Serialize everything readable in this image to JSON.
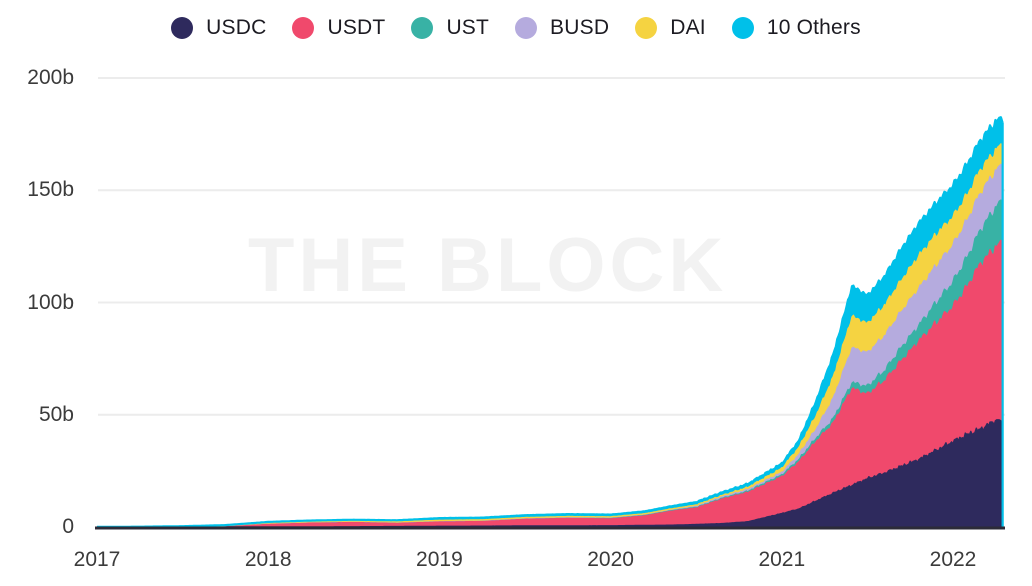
{
  "watermark": "THE BLOCK",
  "legend": {
    "items": [
      {
        "id": "usdc",
        "label": "USDC",
        "color": "#2e2a5d"
      },
      {
        "id": "usdt",
        "label": "USDT",
        "color": "#f0496c"
      },
      {
        "id": "ust",
        "label": "UST",
        "color": "#38b2a5"
      },
      {
        "id": "busd",
        "label": "BUSD",
        "color": "#b5abde"
      },
      {
        "id": "dai",
        "label": "DAI",
        "color": "#f5d341"
      },
      {
        "id": "others",
        "label": "10 Others",
        "color": "#00c0e9"
      }
    ]
  },
  "axes": {
    "y_ticks": [
      {
        "value": 200,
        "label": "200b"
      },
      {
        "value": 150,
        "label": "150b"
      },
      {
        "value": 100,
        "label": "100b"
      },
      {
        "value": 50,
        "label": "50b"
      },
      {
        "value": 0,
        "label": "0"
      }
    ],
    "x_ticks": [
      {
        "value": 2017,
        "label": "2017"
      },
      {
        "value": 2018,
        "label": "2018"
      },
      {
        "value": 2019,
        "label": "2019"
      },
      {
        "value": 2020,
        "label": "2020"
      },
      {
        "value": 2021,
        "label": "2021"
      },
      {
        "value": 2022,
        "label": "2022"
      }
    ]
  },
  "chart_data": {
    "type": "area",
    "stacked": true,
    "grid": "horizontal",
    "legend_position": "top",
    "x_unit": "year",
    "xlim": [
      2017,
      2022.29
    ],
    "ylim": [
      0,
      200
    ],
    "y_unit": "billions",
    "x": [
      2017.0,
      2017.25,
      2017.5,
      2017.75,
      2018.0,
      2018.25,
      2018.5,
      2018.75,
      2019.0,
      2019.25,
      2019.5,
      2019.75,
      2020.0,
      2020.2,
      2020.35,
      2020.5,
      2020.65,
      2020.8,
      2021.0,
      2021.1,
      2021.2,
      2021.3,
      2021.41,
      2021.5,
      2021.6,
      2021.7,
      2021.8,
      2021.9,
      2022.0,
      2022.08,
      2022.16,
      2022.24,
      2022.27,
      2022.29
    ],
    "series": [
      {
        "name": "USDC",
        "color": "#2e2a5d",
        "values": [
          0,
          0,
          0,
          0,
          0.01,
          0.03,
          0.1,
          0.18,
          0.3,
          0.35,
          0.45,
          0.5,
          0.52,
          0.7,
          0.8,
          1.1,
          1.5,
          2.3,
          6.0,
          8.0,
          11.5,
          15.0,
          18.5,
          21.5,
          24.0,
          27.0,
          30.0,
          34.0,
          38.0,
          41.0,
          43.5,
          47.0,
          48.0,
          44.0
        ]
      },
      {
        "name": "USDT",
        "color": "#f0496c",
        "values": [
          0.02,
          0.1,
          0.3,
          0.7,
          1.75,
          2.3,
          2.5,
          2.05,
          2.55,
          2.7,
          3.6,
          3.95,
          3.7,
          4.85,
          6.8,
          8.0,
          11.5,
          13.6,
          16.5,
          21.0,
          26.5,
          31.0,
          43.0,
          37.5,
          41.0,
          47.0,
          52.5,
          56.5,
          60.0,
          65.5,
          73.5,
          76.5,
          78.0,
          81.0
        ]
      },
      {
        "name": "UST",
        "color": "#38b2a5",
        "values": [
          0,
          0,
          0,
          0,
          0,
          0,
          0,
          0,
          0,
          0,
          0,
          0,
          0,
          0,
          0,
          0,
          0.05,
          0.15,
          0.6,
          1.0,
          1.5,
          2.0,
          2.6,
          3.5,
          4.5,
          6.0,
          7.0,
          9.0,
          11.0,
          13.0,
          15.0,
          17.5,
          18.2,
          18.6
        ]
      },
      {
        "name": "BUSD",
        "color": "#b5abde",
        "values": [
          0,
          0,
          0,
          0,
          0,
          0,
          0,
          0,
          0,
          0,
          0,
          0.05,
          0.15,
          0.2,
          0.25,
          0.3,
          0.35,
          0.5,
          1.1,
          2.2,
          4.0,
          9.0,
          15.5,
          15.0,
          15.5,
          16.0,
          16.5,
          16.5,
          16.5,
          16.5,
          16.5,
          16.3,
          16.0,
          16.0
        ]
      },
      {
        "name": "DAI",
        "color": "#f5d341",
        "values": [
          0,
          0,
          0,
          0.01,
          0.05,
          0.06,
          0.07,
          0.08,
          0.1,
          0.12,
          0.13,
          0.14,
          0.15,
          0.15,
          0.15,
          0.4,
          0.6,
          1.0,
          1.9,
          3.2,
          6.0,
          9.5,
          14.0,
          13.0,
          13.5,
          14.0,
          14.5,
          14.0,
          12.5,
          11.5,
          10.5,
          9.5,
          9.2,
          9.0
        ]
      },
      {
        "name": "10 Others",
        "color": "#00c0e9",
        "values": [
          0.02,
          0.03,
          0.05,
          0.12,
          0.45,
          0.5,
          0.55,
          0.68,
          1.0,
          1.0,
          1.05,
          1.1,
          1.0,
          1.1,
          1.2,
          1.3,
          1.4,
          1.55,
          2.1,
          3.1,
          6.5,
          10.0,
          13.5,
          12.5,
          13.0,
          14.0,
          14.5,
          14.0,
          14.0,
          13.5,
          13.0,
          12.8,
          12.3,
          11.5
        ]
      }
    ]
  }
}
